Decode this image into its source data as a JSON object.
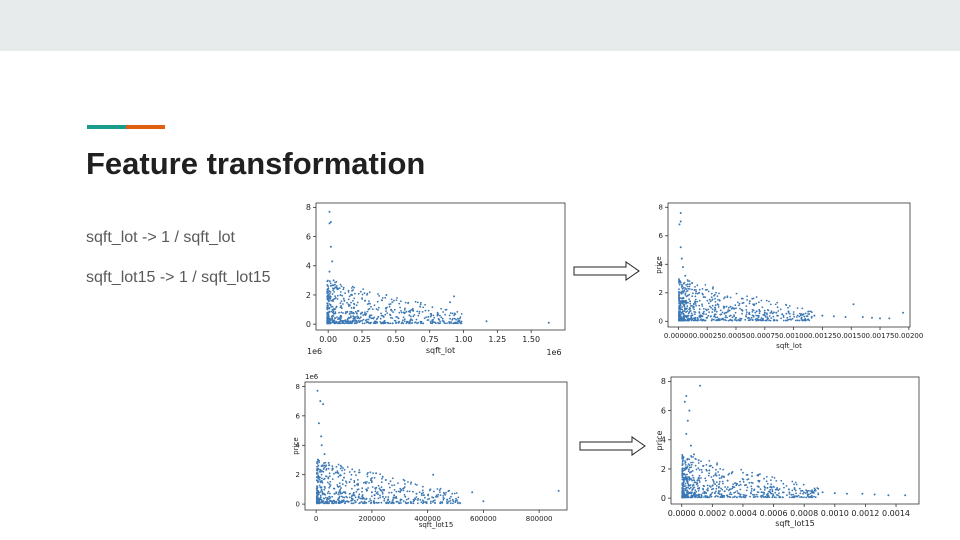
{
  "slide": {
    "title": "Feature transformation",
    "lines": [
      "sqft_lot -> 1 / sqft_lot",
      "sqft_lot15 -> 1 / sqft_lot15"
    ],
    "accent_colors": [
      "#1a9c8c",
      "#e0600f"
    ],
    "point_color": "#3b78b4"
  },
  "chart_data": [
    {
      "type": "scatter",
      "title": "",
      "xlabel": "sqft_lot",
      "ylabel": "",
      "x_offset_label": "1e6",
      "y_offset_label": "1e6",
      "xlim": [
        -0.09,
        1.75
      ],
      "ylim": [
        -0.4,
        8.3
      ],
      "xticks": [
        0.0,
        0.25,
        0.5,
        0.75,
        1.0,
        1.25,
        1.5
      ],
      "xtick_labels": [
        "0.00",
        "0.25",
        "0.50",
        "0.75",
        "1.00",
        "1.25",
        "1.50"
      ],
      "yticks": [
        0,
        2,
        4,
        6,
        8
      ],
      "ytick_labels": [
        "0",
        "2",
        "4",
        "6",
        "8"
      ],
      "points": [
        [
          0.01,
          7.7
        ],
        [
          0.02,
          7.0
        ],
        [
          0.01,
          6.9
        ],
        [
          0.02,
          5.3
        ],
        [
          0.03,
          4.3
        ],
        [
          0.01,
          3.6
        ],
        [
          0.04,
          3.0
        ],
        [
          0.06,
          2.5
        ],
        [
          0.09,
          2.0
        ],
        [
          0.12,
          1.6
        ],
        [
          0.16,
          1.3
        ],
        [
          0.19,
          1.1
        ],
        [
          0.22,
          0.9
        ],
        [
          0.25,
          0.8
        ],
        [
          0.28,
          0.7
        ],
        [
          0.31,
          0.6
        ],
        [
          0.37,
          0.5
        ],
        [
          0.43,
          2.0
        ],
        [
          0.41,
          0.5
        ],
        [
          0.52,
          0.4
        ],
        [
          0.6,
          0.6
        ],
        [
          0.68,
          1.2
        ],
        [
          0.74,
          0.5
        ],
        [
          0.82,
          0.3
        ],
        [
          0.9,
          1.5
        ],
        [
          0.93,
          1.9
        ],
        [
          1.17,
          0.2
        ],
        [
          1.63,
          0.1
        ],
        [
          0.15,
          0.2
        ],
        [
          0.22,
          0.4
        ]
      ]
    },
    {
      "type": "scatter",
      "title": "",
      "xlabel": "sqft_lot",
      "ylabel": "price",
      "xlim": [
        -9e-05,
        0.00201
      ],
      "ylim": [
        -0.4,
        8.3
      ],
      "xticks": [
        0.0,
        0.00025,
        0.0005,
        0.00075,
        0.001,
        0.00125,
        0.0015,
        0.00175,
        0.002
      ],
      "xtick_labels": [
        "0.00000",
        "0.00025",
        "0.00050",
        "0.00075",
        "0.00100",
        "0.00125",
        "0.00150",
        "0.00175",
        "0.00200"
      ],
      "yticks": [
        0,
        2,
        4,
        6,
        8
      ],
      "ytick_labels": [
        "0",
        "2",
        "4",
        "6",
        "8"
      ],
      "points": [
        [
          2e-05,
          7.6
        ],
        [
          2e-05,
          7.0
        ],
        [
          1e-05,
          6.8
        ],
        [
          2e-05,
          5.2
        ],
        [
          3e-05,
          4.4
        ],
        [
          4e-05,
          3.8
        ],
        [
          6e-05,
          3.2
        ],
        [
          0.0001,
          2.6
        ],
        [
          0.00014,
          2.2
        ],
        [
          0.00018,
          2.0
        ],
        [
          0.00022,
          1.7
        ],
        [
          0.00028,
          1.4
        ],
        [
          0.00034,
          1.2
        ],
        [
          0.0004,
          1.0
        ],
        [
          0.00048,
          0.9
        ],
        [
          0.00055,
          0.8
        ],
        [
          0.00062,
          1.4
        ],
        [
          0.00068,
          0.7
        ],
        [
          0.00075,
          0.6
        ],
        [
          0.00085,
          0.6
        ],
        [
          0.0009,
          0.5
        ],
        [
          0.001,
          0.5
        ],
        [
          0.00108,
          0.45
        ],
        [
          0.00118,
          0.4
        ],
        [
          0.00125,
          0.4
        ],
        [
          0.00135,
          0.35
        ],
        [
          0.00145,
          0.3
        ],
        [
          0.00152,
          1.2
        ],
        [
          0.0016,
          0.3
        ],
        [
          0.00168,
          0.25
        ],
        [
          0.00175,
          0.2
        ],
        [
          0.00183,
          0.2
        ],
        [
          0.00195,
          0.6
        ]
      ]
    },
    {
      "type": "scatter",
      "title": "",
      "xlabel": "sqft_lot15",
      "ylabel": "price",
      "y_offset_label": "1e6",
      "xlim": [
        -40000,
        900000
      ],
      "ylim": [
        -0.4,
        8.3
      ],
      "xticks": [
        0,
        200000,
        400000,
        600000,
        800000
      ],
      "xtick_labels": [
        "0",
        "200000",
        "400000",
        "600000",
        "800000"
      ],
      "yticks": [
        0,
        2,
        4,
        6,
        8
      ],
      "ytick_labels": [
        "0",
        "2",
        "4",
        "6",
        "8"
      ],
      "points": [
        [
          5000,
          7.7
        ],
        [
          15000,
          7.0
        ],
        [
          25000,
          6.8
        ],
        [
          10000,
          5.5
        ],
        [
          18000,
          4.6
        ],
        [
          20000,
          4.0
        ],
        [
          30000,
          3.4
        ],
        [
          45000,
          2.8
        ],
        [
          60000,
          2.4
        ],
        [
          80000,
          2.1
        ],
        [
          100000,
          1.8
        ],
        [
          120000,
          1.5
        ],
        [
          150000,
          1.3
        ],
        [
          180000,
          1.0
        ],
        [
          200000,
          0.8
        ],
        [
          215000,
          2.1
        ],
        [
          210000,
          0.6
        ],
        [
          240000,
          0.5
        ],
        [
          280000,
          0.6
        ],
        [
          320000,
          0.5
        ],
        [
          360000,
          0.7
        ],
        [
          410000,
          1.0
        ],
        [
          420000,
          2.0
        ],
        [
          430000,
          0.5
        ],
        [
          470000,
          0.3
        ],
        [
          560000,
          0.8
        ],
        [
          600000,
          0.2
        ],
        [
          870000,
          0.9
        ]
      ]
    },
    {
      "type": "scatter",
      "title": "",
      "xlabel": "sqft_lot15",
      "ylabel": "price",
      "xlim": [
        -7e-05,
        0.00155
      ],
      "ylim": [
        -0.4,
        8.3
      ],
      "xticks": [
        0.0,
        0.0002,
        0.0004,
        0.0006,
        0.0008,
        0.001,
        0.0012,
        0.0014
      ],
      "xtick_labels": [
        "0.0000",
        "0.0002",
        "0.0004",
        "0.0006",
        "0.0008",
        "0.0010",
        "0.0012",
        "0.0014"
      ],
      "yticks": [
        0,
        2,
        4,
        6,
        8
      ],
      "ytick_labels": [
        "0",
        "2",
        "4",
        "6",
        "8"
      ],
      "points": [
        [
          3e-05,
          7.0
        ],
        [
          2e-05,
          6.6
        ],
        [
          5e-05,
          6.0
        ],
        [
          0.00012,
          7.7
        ],
        [
          4e-05,
          5.3
        ],
        [
          3e-05,
          4.4
        ],
        [
          6e-05,
          3.6
        ],
        [
          8e-05,
          3.0
        ],
        [
          0.00011,
          2.6
        ],
        [
          0.00014,
          2.2
        ],
        [
          0.00018,
          1.9
        ],
        [
          0.00022,
          1.6
        ],
        [
          0.00026,
          1.4
        ],
        [
          0.0003,
          1.2
        ],
        [
          0.00036,
          1.0
        ],
        [
          0.00042,
          0.9
        ],
        [
          0.0005,
          0.8
        ],
        [
          0.00056,
          0.7
        ],
        [
          0.00062,
          0.6
        ],
        [
          0.0007,
          0.6
        ],
        [
          0.00078,
          0.5
        ],
        [
          0.00085,
          0.45
        ],
        [
          0.00092,
          0.4
        ],
        [
          0.001,
          0.35
        ],
        [
          0.00108,
          0.3
        ],
        [
          0.00118,
          0.3
        ],
        [
          0.00126,
          0.25
        ],
        [
          0.00135,
          0.2
        ],
        [
          0.00146,
          0.2
        ]
      ]
    }
  ]
}
